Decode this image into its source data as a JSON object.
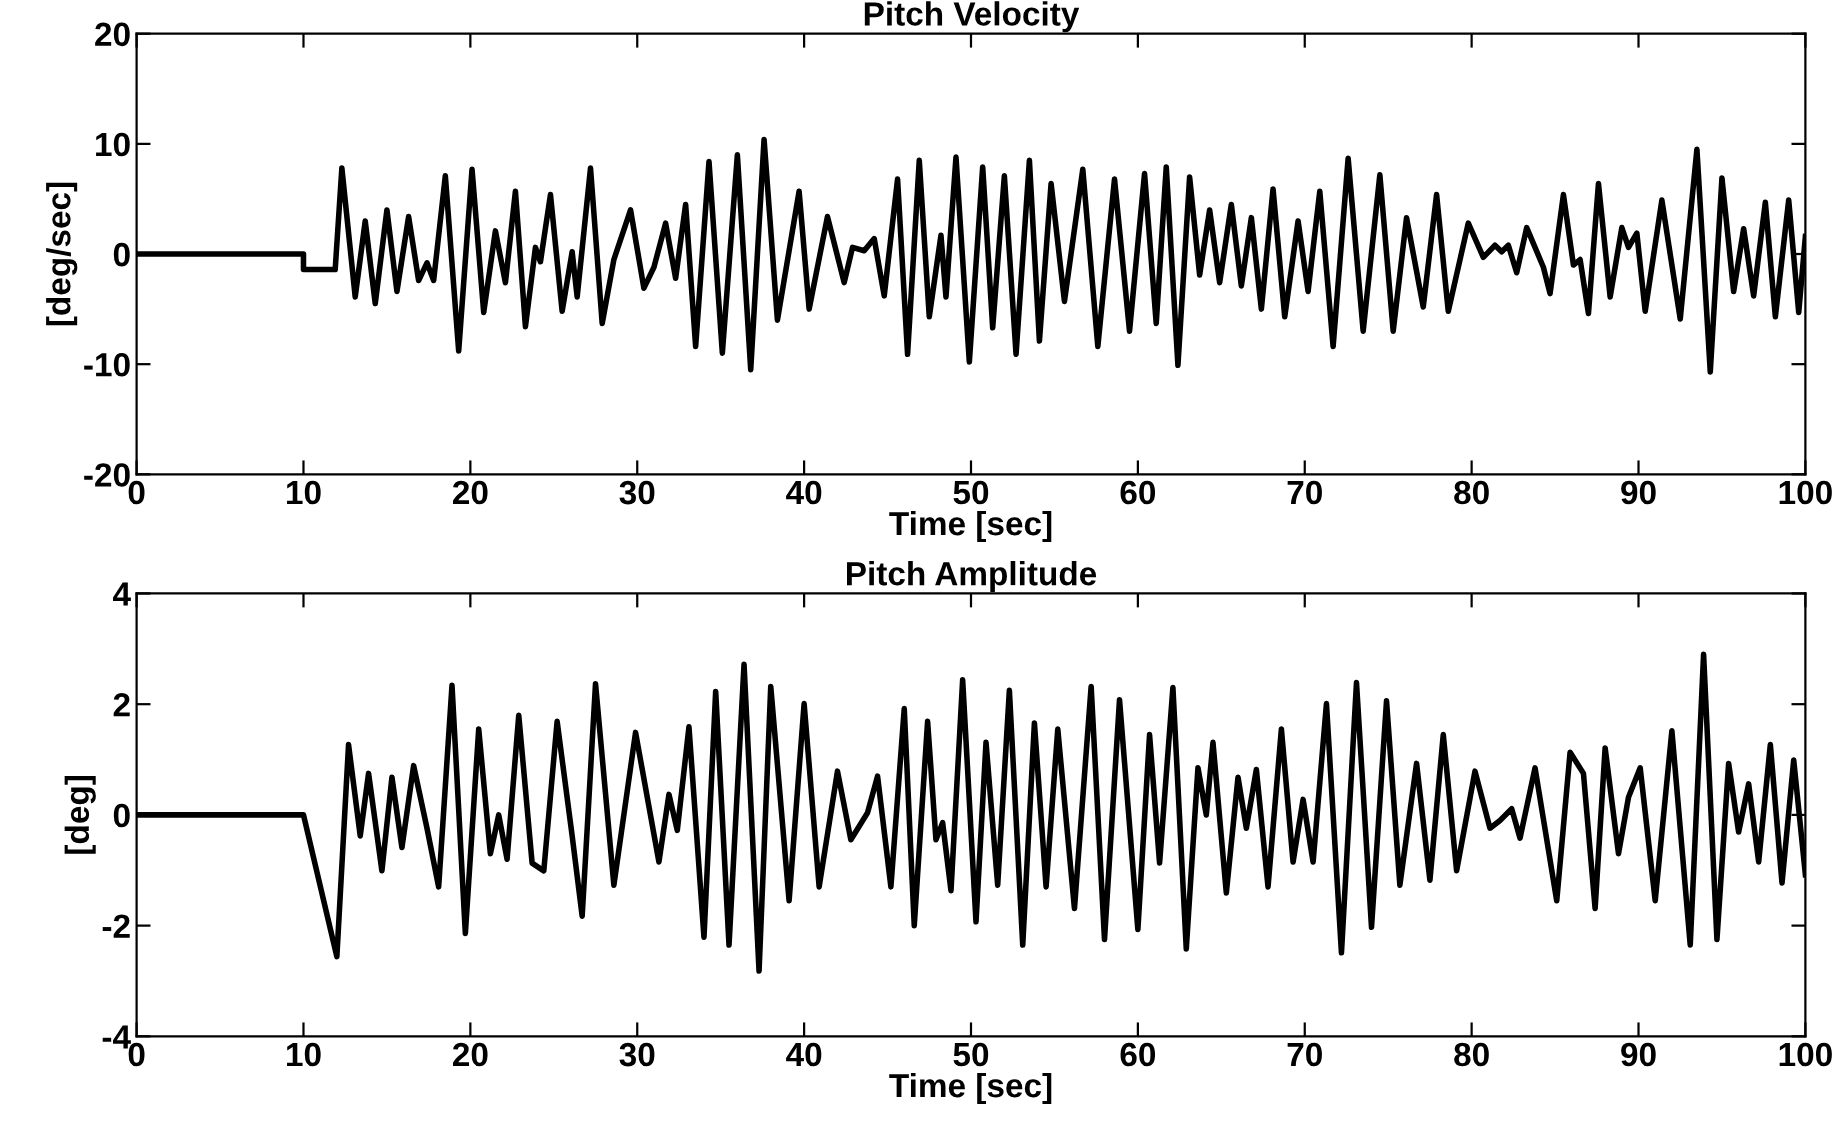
{
  "chart_data": [
    {
      "type": "line",
      "title": "Pitch Velocity",
      "xlabel": "Time [sec]",
      "ylabel": "[deg/sec]",
      "xlim": [
        0,
        100
      ],
      "ylim": [
        -20,
        20
      ],
      "xticks": [
        0,
        10,
        20,
        30,
        40,
        50,
        60,
        70,
        80,
        90,
        100
      ],
      "yticks": [
        -20,
        -10,
        0,
        10,
        20
      ],
      "grid": false,
      "legend": false,
      "series": [
        {
          "color": "#000000",
          "x": [
            0,
            10,
            10,
            11.9,
            12.3,
            13.1,
            13.7,
            14.3,
            15.0,
            15.6,
            16.3,
            16.9,
            17.4,
            17.8,
            18.5,
            19.3,
            20.1,
            20.8,
            21.5,
            22.1,
            22.7,
            23.3,
            23.9,
            24.2,
            24.8,
            25.5,
            26.1,
            26.4,
            27.2,
            27.9,
            28.6,
            29.6,
            30.4,
            31.0,
            31.7,
            32.3,
            32.9,
            33.5,
            34.3,
            35.1,
            36.0,
            36.8,
            37.6,
            38.4,
            39.7,
            40.3,
            41.4,
            42.4,
            42.9,
            43.6,
            44.2,
            44.8,
            45.6,
            46.2,
            46.9,
            47.5,
            48.2,
            48.5,
            49.1,
            49.9,
            50.7,
            51.3,
            52.0,
            52.7,
            53.5,
            54.1,
            54.8,
            55.6,
            56.7,
            57.6,
            58.6,
            59.5,
            60.4,
            61.1,
            61.7,
            62.4,
            63.1,
            63.7,
            64.3,
            64.9,
            65.6,
            66.2,
            66.8,
            67.4,
            68.1,
            68.8,
            69.6,
            70.2,
            70.9,
            71.7,
            72.6,
            73.5,
            74.5,
            75.3,
            76.1,
            77.1,
            77.9,
            78.6,
            79.8,
            80.7,
            81.4,
            81.8,
            82.2,
            82.7,
            83.3,
            84.3,
            84.7,
            85.5,
            86.1,
            86.5,
            87.0,
            87.6,
            88.3,
            89.0,
            89.4,
            89.9,
            90.4,
            91.4,
            92.5,
            93.5,
            94.3,
            95.0,
            95.7,
            96.3,
            96.9,
            97.6,
            98.2,
            99.0,
            99.6,
            100
          ],
          "values": [
            0,
            0,
            -1.4,
            -1.4,
            7.8,
            -3.9,
            3.0,
            -4.5,
            4.0,
            -3.4,
            3.4,
            -2.4,
            -0.8,
            -2.4,
            7.1,
            -8.8,
            7.7,
            -5.3,
            2.1,
            -2.6,
            5.7,
            -6.6,
            0.6,
            -0.7,
            5.4,
            -5.2,
            0.2,
            -3.9,
            7.8,
            -6.3,
            -0.5,
            4.0,
            -3.1,
            -1.2,
            2.8,
            -2.2,
            4.5,
            -8.4,
            8.4,
            -9.0,
            9.0,
            -10.5,
            10.4,
            -6.0,
            5.7,
            -5.0,
            3.4,
            -2.6,
            0.6,
            0.3,
            1.4,
            -3.8,
            6.8,
            -9.1,
            8.5,
            -5.7,
            1.7,
            -3.9,
            8.8,
            -9.8,
            7.9,
            -6.7,
            7.1,
            -9.1,
            8.5,
            -7.9,
            6.4,
            -4.3,
            7.7,
            -8.4,
            6.8,
            -7.0,
            7.3,
            -6.3,
            7.9,
            -10.1,
            7.0,
            -1.9,
            4.0,
            -2.6,
            4.5,
            -2.9,
            3.3,
            -5.0,
            5.9,
            -5.7,
            3.0,
            -3.4,
            5.7,
            -8.4,
            8.7,
            -7.0,
            7.2,
            -7.0,
            3.3,
            -4.8,
            5.4,
            -5.2,
            2.8,
            -0.3,
            0.8,
            0.2,
            0.8,
            -1.7,
            2.4,
            -1.2,
            -3.6,
            5.4,
            -1.0,
            -0.5,
            -5.4,
            6.4,
            -3.9,
            2.4,
            0.6,
            1.9,
            -5.2,
            4.9,
            -5.9,
            9.5,
            -10.7,
            6.9,
            -3.4,
            2.3,
            -3.8,
            4.7,
            -5.7,
            4.9,
            -5.3,
            1.6
          ]
        }
      ]
    },
    {
      "type": "line",
      "title": "Pitch Amplitude",
      "xlabel": "Time [sec]",
      "ylabel": "[deg]",
      "xlim": [
        0,
        100
      ],
      "ylim": [
        -4,
        4
      ],
      "xticks": [
        0,
        10,
        20,
        30,
        40,
        50,
        60,
        70,
        80,
        90,
        100
      ],
      "yticks": [
        -4,
        -2,
        0,
        2,
        4
      ],
      "grid": false,
      "legend": false,
      "series": [
        {
          "color": "#000000",
          "x": [
            0,
            10,
            12.0,
            12.7,
            13.4,
            13.9,
            14.7,
            15.3,
            15.9,
            16.6,
            17.4,
            18.1,
            18.9,
            19.7,
            20.5,
            21.2,
            21.7,
            22.2,
            22.9,
            23.7,
            24.4,
            25.2,
            26.1,
            26.7,
            27.5,
            28.6,
            29.9,
            31.3,
            31.9,
            32.4,
            33.1,
            34.0,
            34.7,
            35.5,
            36.4,
            37.3,
            38.0,
            39.1,
            40.0,
            40.9,
            42.0,
            42.8,
            43.8,
            44.4,
            45.2,
            46.0,
            46.6,
            47.4,
            47.9,
            48.3,
            48.8,
            49.5,
            50.3,
            50.9,
            51.6,
            52.3,
            53.1,
            53.8,
            54.5,
            55.2,
            56.2,
            57.2,
            58.0,
            58.9,
            60.0,
            60.7,
            61.3,
            62.1,
            62.9,
            63.6,
            64.1,
            64.5,
            65.3,
            66.0,
            66.5,
            67.1,
            67.8,
            68.6,
            69.3,
            69.9,
            70.5,
            71.3,
            72.2,
            73.1,
            74.0,
            74.9,
            75.7,
            76.7,
            77.5,
            78.3,
            79.1,
            80.2,
            81.1,
            81.7,
            82.4,
            82.9,
            83.8,
            85.1,
            85.9,
            86.7,
            87.4,
            88.0,
            88.8,
            89.4,
            90.1,
            91.0,
            92.0,
            93.1,
            93.9,
            94.7,
            95.4,
            96.0,
            96.6,
            97.2,
            97.9,
            98.6,
            99.3,
            100
          ],
          "values": [
            0,
            0,
            -2.56,
            1.27,
            -0.38,
            0.75,
            -1.01,
            0.68,
            -0.59,
            0.89,
            -0.24,
            -1.3,
            2.34,
            -2.14,
            1.55,
            -0.7,
            0.0,
            -0.8,
            1.8,
            -0.87,
            -1.01,
            1.69,
            -0.38,
            -1.83,
            2.37,
            -1.27,
            1.49,
            -0.85,
            0.37,
            -0.28,
            1.59,
            -2.21,
            2.23,
            -2.35,
            2.72,
            -2.82,
            2.32,
            -1.55,
            2.01,
            -1.3,
            0.79,
            -0.45,
            0.04,
            0.7,
            -1.3,
            1.92,
            -2.0,
            1.69,
            -0.45,
            -0.14,
            -1.37,
            2.44,
            -1.93,
            1.31,
            -1.27,
            2.25,
            -2.35,
            1.66,
            -1.3,
            1.55,
            -1.69,
            2.32,
            -2.25,
            2.08,
            -2.07,
            1.45,
            -0.87,
            2.3,
            -2.42,
            0.85,
            0.0,
            1.31,
            -1.41,
            0.68,
            -0.24,
            0.82,
            -1.3,
            1.55,
            -0.85,
            0.28,
            -0.85,
            2.01,
            -2.49,
            2.39,
            -2.03,
            2.06,
            -1.27,
            0.93,
            -1.18,
            1.45,
            -1.01,
            0.79,
            -0.24,
            -0.1,
            0.11,
            -0.42,
            0.85,
            -1.55,
            1.13,
            0.75,
            -1.69,
            1.21,
            -0.7,
            0.32,
            0.85,
            -1.55,
            1.52,
            -2.35,
            2.9,
            -2.25,
            0.93,
            -0.31,
            0.56,
            -0.85,
            1.27,
            -1.23,
            0.99,
            -1.08
          ]
        }
      ]
    }
  ]
}
